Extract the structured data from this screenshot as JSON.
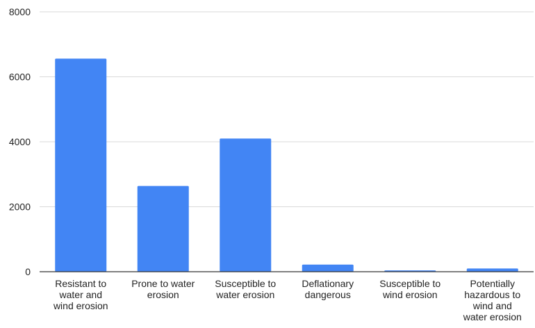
{
  "chart_data": {
    "type": "bar",
    "title": "",
    "xlabel": "",
    "ylabel": "",
    "categories": [
      "Resistant to water and wind erosion",
      "Prone to water erosion",
      "Susceptible to water erosion",
      "Deflationary dangerous",
      "Susceptible to wind erosion",
      "Potentially hazardous to wind and water erosion"
    ],
    "category_lines": [
      [
        "Resistant to",
        "water and",
        "wind erosion"
      ],
      [
        "Prone to water",
        "erosion"
      ],
      [
        "Susceptible to",
        "water erosion"
      ],
      [
        "Deflationary",
        "dangerous"
      ],
      [
        "Susceptible to",
        "wind erosion"
      ],
      [
        "Potentially",
        "hazardous to",
        "wind and",
        "water erosion"
      ]
    ],
    "values": [
      6560,
      2640,
      4100,
      220,
      40,
      100
    ],
    "ylim": [
      0,
      8000
    ],
    "yticks": [
      0,
      2000,
      4000,
      6000,
      8000
    ],
    "grid": true,
    "legend": "none",
    "colors": {
      "bar": "#4285f4",
      "grid": "#d9d9d9",
      "baseline": "#333333",
      "text": "#222222"
    }
  }
}
